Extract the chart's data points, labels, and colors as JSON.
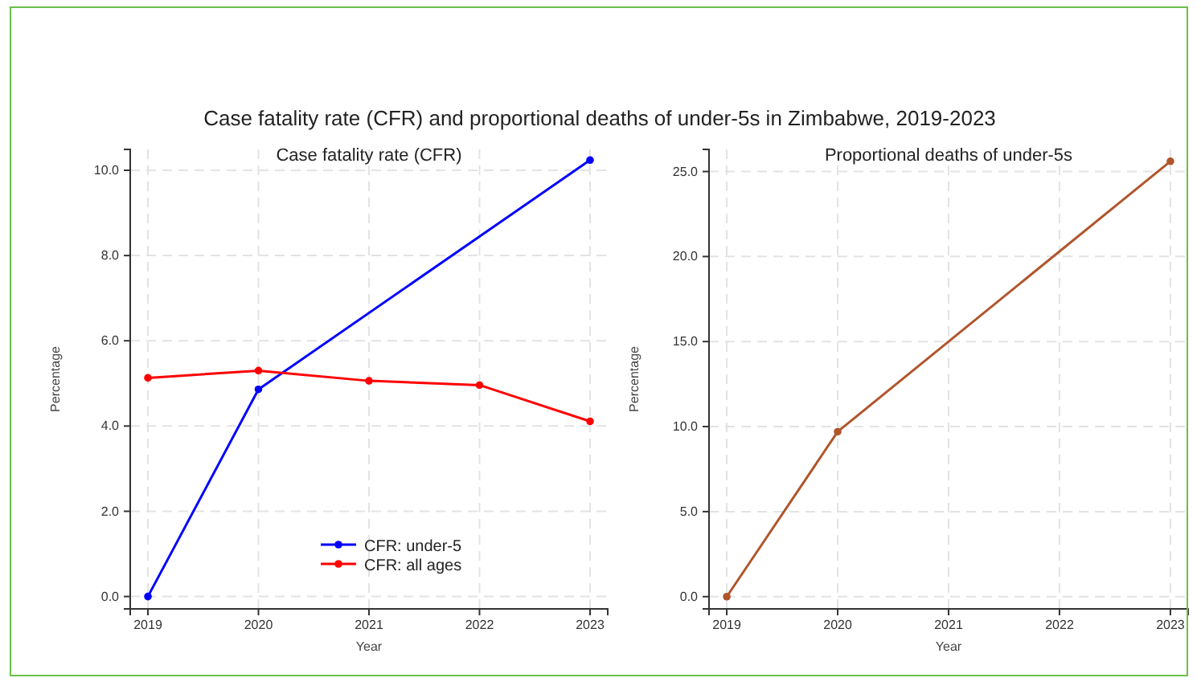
{
  "chart_data": [
    {
      "type": "line",
      "title": "Case fatality rate (CFR)",
      "xlabel": "Year",
      "ylabel": "Percentage",
      "annotations": [
        "Case fatality rate (CFR) and proportional deaths of under-5s in Zimbabwe, 2019-2023"
      ],
      "xlim": [
        2018.84,
        2023.16
      ],
      "xticks": [
        2019,
        2020,
        2021,
        2022,
        2023
      ],
      "ylim": [
        -0.29,
        10.49
      ],
      "yticks": [
        {
          "value": 0,
          "label": "0.0"
        },
        {
          "value": 2,
          "label": "2.0"
        },
        {
          "value": 4,
          "label": "4.0"
        },
        {
          "value": 6,
          "label": "6.0"
        },
        {
          "value": 8,
          "label": "8.0"
        },
        {
          "value": 10,
          "label": "10.0"
        }
      ],
      "grid": true,
      "marker": "circle",
      "line_style": "solid",
      "legend": "bottom",
      "series": [
        {
          "name": "CFR: under-5",
          "color": "#0000ff",
          "x": [
            2019,
            2020,
            2023
          ],
          "values": [
            0,
            4.86,
            10.24
          ]
        },
        {
          "name": "CFR: all ages",
          "color": "#ff0000",
          "x": [
            2019,
            2020,
            2021,
            2022,
            2023
          ],
          "values": [
            5.13,
            5.3,
            5.06,
            4.96,
            4.11
          ]
        }
      ]
    },
    {
      "type": "line",
      "title": "Proportional deaths of under-5s",
      "xlabel": "Year",
      "ylabel": "Percentage",
      "xlim": [
        2018.84,
        2023.16
      ],
      "xticks": [
        2019,
        2020,
        2021,
        2022,
        2023
      ],
      "ylim": [
        -0.72,
        26.3
      ],
      "yticks": [
        {
          "value": 0,
          "label": "0.0"
        },
        {
          "value": 5,
          "label": "5.0"
        },
        {
          "value": 10,
          "label": "10.0"
        },
        {
          "value": 15,
          "label": "15.0"
        },
        {
          "value": 20,
          "label": "20.0"
        },
        {
          "value": 25,
          "label": "25.0"
        }
      ],
      "grid": true,
      "marker": "circle",
      "line_style": "solid",
      "series": [
        {
          "color": "#b0562c",
          "x": [
            2019,
            2020,
            2023
          ],
          "values": [
            0,
            9.7,
            25.6
          ]
        }
      ]
    }
  ]
}
